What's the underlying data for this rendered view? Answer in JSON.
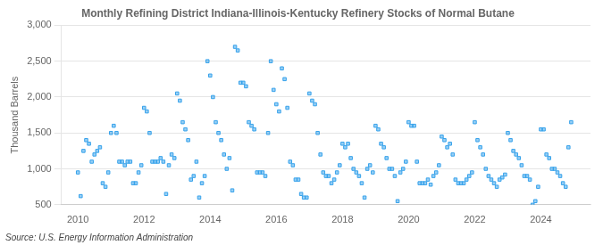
{
  "chart_data": {
    "type": "scatter",
    "title": "Monthly Refining District Indiana-Illinois-Kentucky Refinery Stocks of Normal Butane",
    "ylabel": "Thousand Barrels",
    "annotations": [
      "Source: U.S. Energy Information Administration"
    ],
    "marker": "square",
    "grid": "y",
    "xlim": [
      2009.5,
      2025.5
    ],
    "xticks": [
      2010,
      2012,
      2014,
      2016,
      2018,
      2020,
      2022,
      2024
    ],
    "ylim": [
      500,
      3000
    ],
    "yticks": [
      500,
      {
        "value": 1000,
        "label": "1,000"
      },
      {
        "value": 1500,
        "label": "1,500"
      },
      {
        "value": 2000,
        "label": "2,000"
      },
      {
        "value": 2500,
        "label": "2,500"
      },
      {
        "value": 3000,
        "label": "3,000"
      }
    ],
    "x": [
      2010.0,
      2010.083,
      2010.167,
      2010.25,
      2010.333,
      2010.417,
      2010.5,
      2010.583,
      2010.667,
      2010.75,
      2010.833,
      2010.917,
      2011.0,
      2011.083,
      2011.167,
      2011.25,
      2011.333,
      2011.417,
      2011.5,
      2011.583,
      2011.667,
      2011.75,
      2011.833,
      2011.917,
      2012.0,
      2012.083,
      2012.167,
      2012.25,
      2012.333,
      2012.417,
      2012.5,
      2012.583,
      2012.667,
      2012.75,
      2012.833,
      2012.917,
      2013.0,
      2013.083,
      2013.167,
      2013.25,
      2013.333,
      2013.417,
      2013.5,
      2013.583,
      2013.667,
      2013.75,
      2013.833,
      2013.917,
      2014.0,
      2014.083,
      2014.167,
      2014.25,
      2014.333,
      2014.417,
      2014.5,
      2014.583,
      2014.667,
      2014.75,
      2014.833,
      2014.917,
      2015.0,
      2015.083,
      2015.167,
      2015.25,
      2015.333,
      2015.417,
      2015.5,
      2015.583,
      2015.667,
      2015.75,
      2015.833,
      2015.917,
      2016.0,
      2016.083,
      2016.167,
      2016.25,
      2016.333,
      2016.417,
      2016.5,
      2016.583,
      2016.667,
      2016.75,
      2016.833,
      2016.917,
      2017.0,
      2017.083,
      2017.167,
      2017.25,
      2017.333,
      2017.417,
      2017.5,
      2017.583,
      2017.667,
      2017.75,
      2017.833,
      2017.917,
      2018.0,
      2018.083,
      2018.167,
      2018.25,
      2018.333,
      2018.417,
      2018.5,
      2018.583,
      2018.667,
      2018.75,
      2018.833,
      2018.917,
      2019.0,
      2019.083,
      2019.167,
      2019.25,
      2019.333,
      2019.417,
      2019.5,
      2019.583,
      2019.667,
      2019.75,
      2019.833,
      2019.917,
      2020.0,
      2020.083,
      2020.167,
      2020.25,
      2020.333,
      2020.417,
      2020.5,
      2020.583,
      2020.667,
      2020.75,
      2020.833,
      2020.917,
      2021.0,
      2021.083,
      2021.167,
      2021.25,
      2021.333,
      2021.417,
      2021.5,
      2021.583,
      2021.667,
      2021.75,
      2021.833,
      2021.917,
      2022.0,
      2022.083,
      2022.167,
      2022.25,
      2022.333,
      2022.417,
      2022.5,
      2022.583,
      2022.667,
      2022.75,
      2022.833,
      2022.917,
      2023.0,
      2023.083,
      2023.167,
      2023.25,
      2023.333,
      2023.417,
      2023.5,
      2023.583,
      2023.667,
      2023.75,
      2023.833,
      2023.917,
      2024.0,
      2024.083,
      2024.167,
      2024.25,
      2024.333,
      2024.417,
      2024.5,
      2024.583,
      2024.667,
      2024.75,
      2024.833,
      2024.917
    ],
    "values": [
      950,
      620,
      1250,
      1400,
      1350,
      1100,
      1200,
      1250,
      1300,
      800,
      750,
      950,
      1500,
      1600,
      1500,
      1100,
      1100,
      1050,
      1100,
      1100,
      800,
      800,
      950,
      1050,
      1850,
      1800,
      1500,
      1100,
      1100,
      1100,
      1150,
      1100,
      650,
      1050,
      1200,
      1150,
      2050,
      1950,
      1650,
      1550,
      1400,
      850,
      900,
      1100,
      600,
      800,
      900,
      2500,
      2300,
      2000,
      1650,
      1500,
      1400,
      1200,
      1000,
      1150,
      700,
      2700,
      2650,
      2200,
      2200,
      2150,
      1650,
      1600,
      1550,
      950,
      950,
      950,
      900,
      1500,
      2500,
      2100,
      1900,
      1800,
      2400,
      2250,
      1850,
      1100,
      1050,
      850,
      850,
      650,
      600,
      600,
      2050,
      1950,
      1900,
      1500,
      1200,
      950,
      900,
      900,
      800,
      850,
      950,
      1050,
      1350,
      1300,
      1350,
      1150,
      1000,
      950,
      900,
      800,
      600,
      1000,
      1050,
      950,
      1600,
      1550,
      1350,
      1300,
      1150,
      1000,
      1000,
      900,
      550,
      950,
      1000,
      1100,
      1650,
      1600,
      1600,
      1100,
      800,
      800,
      800,
      850,
      780,
      900,
      950,
      1050,
      1450,
      1400,
      1300,
      1350,
      1200,
      850,
      800,
      800,
      800,
      850,
      900,
      950,
      1650,
      1400,
      1300,
      1200,
      1000,
      900,
      850,
      800,
      750,
      850,
      880,
      920,
      1500,
      1400,
      1250,
      1200,
      1150,
      1050,
      900,
      900,
      850,
      500,
      550,
      750,
      1550,
      1550,
      1200,
      1150,
      1000,
      1000,
      950,
      900,
      800,
      750,
      1300,
      1650
    ]
  }
}
